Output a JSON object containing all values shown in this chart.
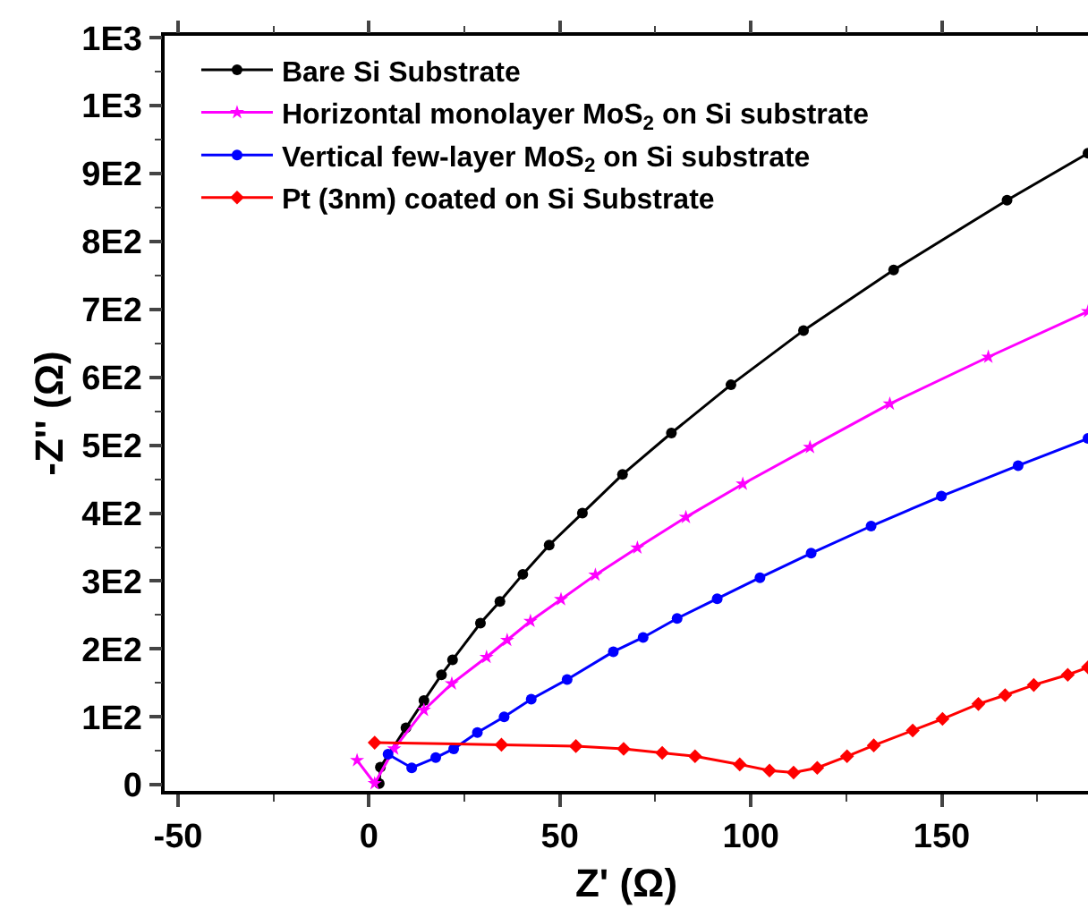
{
  "chart_data": {
    "type": "line",
    "xlabel": "Z' (Ω)",
    "ylabel": "-Z'' (Ω)",
    "xlim": [
      -53.5,
      188.3
    ],
    "xticks": [
      -50,
      0,
      50,
      100,
      150
    ],
    "ylim": [
      -9,
      1103
    ],
    "yticks": [
      0,
      {
        "value": 100,
        "label": "1E2"
      },
      {
        "value": 200,
        "label": "2E2"
      },
      {
        "value": 300,
        "label": "3E2"
      },
      {
        "value": 400,
        "label": "4E2"
      },
      {
        "value": 500,
        "label": "5E2"
      },
      {
        "value": 600,
        "label": "6E2"
      },
      {
        "value": 700,
        "label": "7E2"
      },
      {
        "value": 800,
        "label": "8E2"
      },
      {
        "value": 900,
        "label": "9E2"
      },
      {
        "value": 1000,
        "label": "1E3"
      },
      {
        "value": 1100,
        "label": "1E3"
      }
    ],
    "grid": false,
    "legend": "top left",
    "line_style": "solid",
    "series": [
      {
        "name": "Bare Si Substrate",
        "color": "#000000",
        "marker": "circle",
        "x": [
          2.7,
          3,
          9.7,
          14.4,
          19,
          21.9,
          29.2,
          34.3,
          40.3,
          47.2,
          55.9,
          66.4,
          79.2,
          94.8,
          113.8,
          137.4,
          167.1,
          188.3
        ],
        "values": [
          2,
          26,
          84,
          124,
          162,
          184,
          238,
          270,
          310,
          353,
          400,
          457,
          518,
          589,
          669,
          758,
          861,
          930
        ]
      },
      {
        "name": "Horizontal monolayer MoS$_{2}$ on Si substrate",
        "color": "#ff00ff",
        "marker": "star",
        "x": [
          -3.1,
          1.5,
          6.6,
          14.4,
          21.7,
          30.8,
          36.2,
          42.3,
          50.3,
          59.3,
          70.3,
          83,
          97.9,
          115.5,
          136.4,
          162.2,
          188.3
        ],
        "values": [
          36,
          2,
          53,
          110,
          149,
          188,
          213,
          241,
          273,
          309,
          349,
          394,
          443,
          497,
          561,
          630,
          697
        ]
      },
      {
        "name": "Vertical few-layer MoS$_{2}$ on Si substrate",
        "color": "#0000ff",
        "marker": "circle",
        "x": [
          5,
          11.2,
          17.5,
          22.2,
          28.4,
          35.4,
          42.5,
          51.9,
          64,
          71.8,
          80.7,
          91.2,
          102.4,
          115.8,
          131.5,
          149.9,
          170,
          188.3
        ],
        "values": [
          45,
          25,
          40,
          53,
          77,
          100,
          126,
          155,
          196,
          217,
          245,
          274,
          305,
          341,
          381,
          425,
          470,
          510
        ]
      },
      {
        "name": "Pt (3nm) coated on Si Substrate",
        "color": "#ff0000",
        "marker": "diamond",
        "x": [
          1.5,
          34.7,
          54.2,
          66.7,
          76.8,
          85.4,
          97.1,
          104.9,
          111.2,
          117.4,
          125.2,
          132.2,
          142.4,
          150.2,
          159.6,
          166.6,
          174.1,
          183,
          188.3
        ],
        "values": [
          62,
          59,
          57,
          53,
          47,
          42,
          30,
          21,
          18,
          25,
          42,
          58,
          80,
          97,
          119,
          132,
          147,
          162,
          173
        ]
      }
    ]
  }
}
